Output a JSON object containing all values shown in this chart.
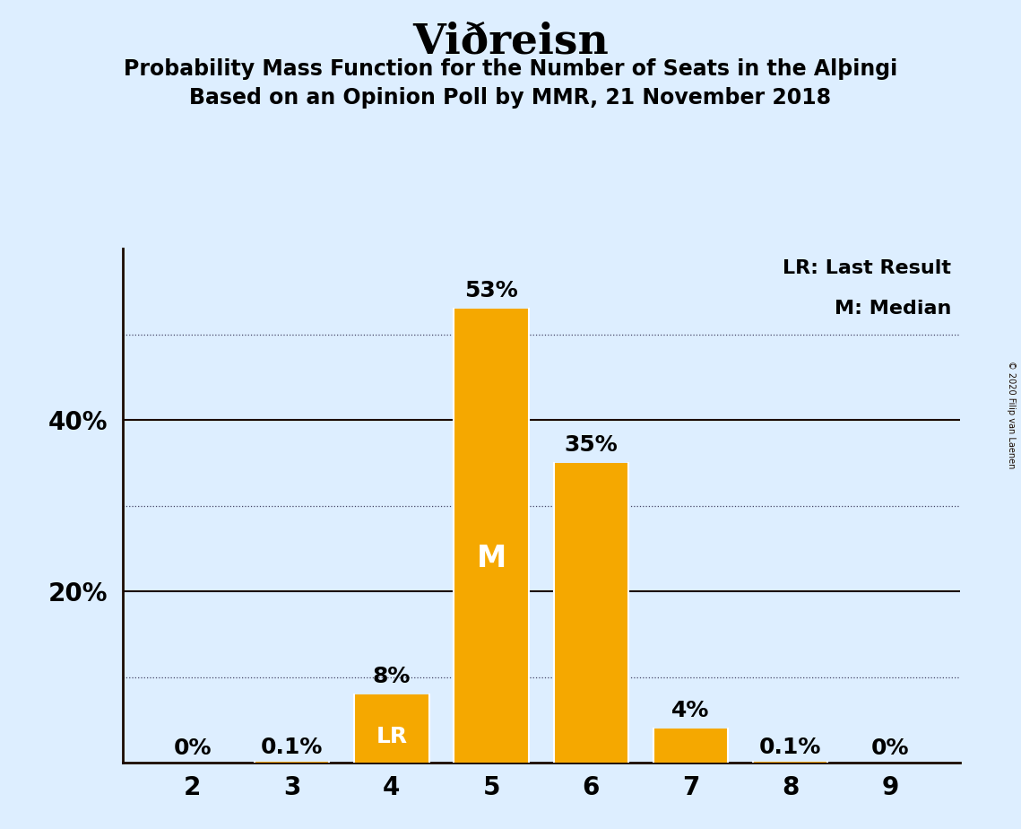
{
  "title": "Viðreisn",
  "subtitle1": "Probability Mass Function for the Number of Seats in the Alþingi",
  "subtitle2": "Based on an Opinion Poll by MMR, 21 November 2018",
  "copyright": "© 2020 Filip van Laenen",
  "categories": [
    2,
    3,
    4,
    5,
    6,
    7,
    8,
    9
  ],
  "values": [
    0.0,
    0.001,
    0.08,
    0.53,
    0.35,
    0.04,
    0.001,
    0.0
  ],
  "labels": [
    "0%",
    "0.1%",
    "8%",
    "53%",
    "35%",
    "4%",
    "0.1%",
    "0%"
  ],
  "bar_color": "#F5A800",
  "background_color": "#DDEEFF",
  "median_seat": 5,
  "lr_seat": 4,
  "legend_lr": "LR: Last Result",
  "legend_m": "M: Median",
  "solid_yticks": [
    0.2,
    0.4
  ],
  "solid_ytick_labels": [
    "20%",
    "40%"
  ],
  "dotted_lines": [
    0.1,
    0.3,
    0.5
  ],
  "ylim": [
    0,
    0.6
  ],
  "bar_width": 0.75
}
